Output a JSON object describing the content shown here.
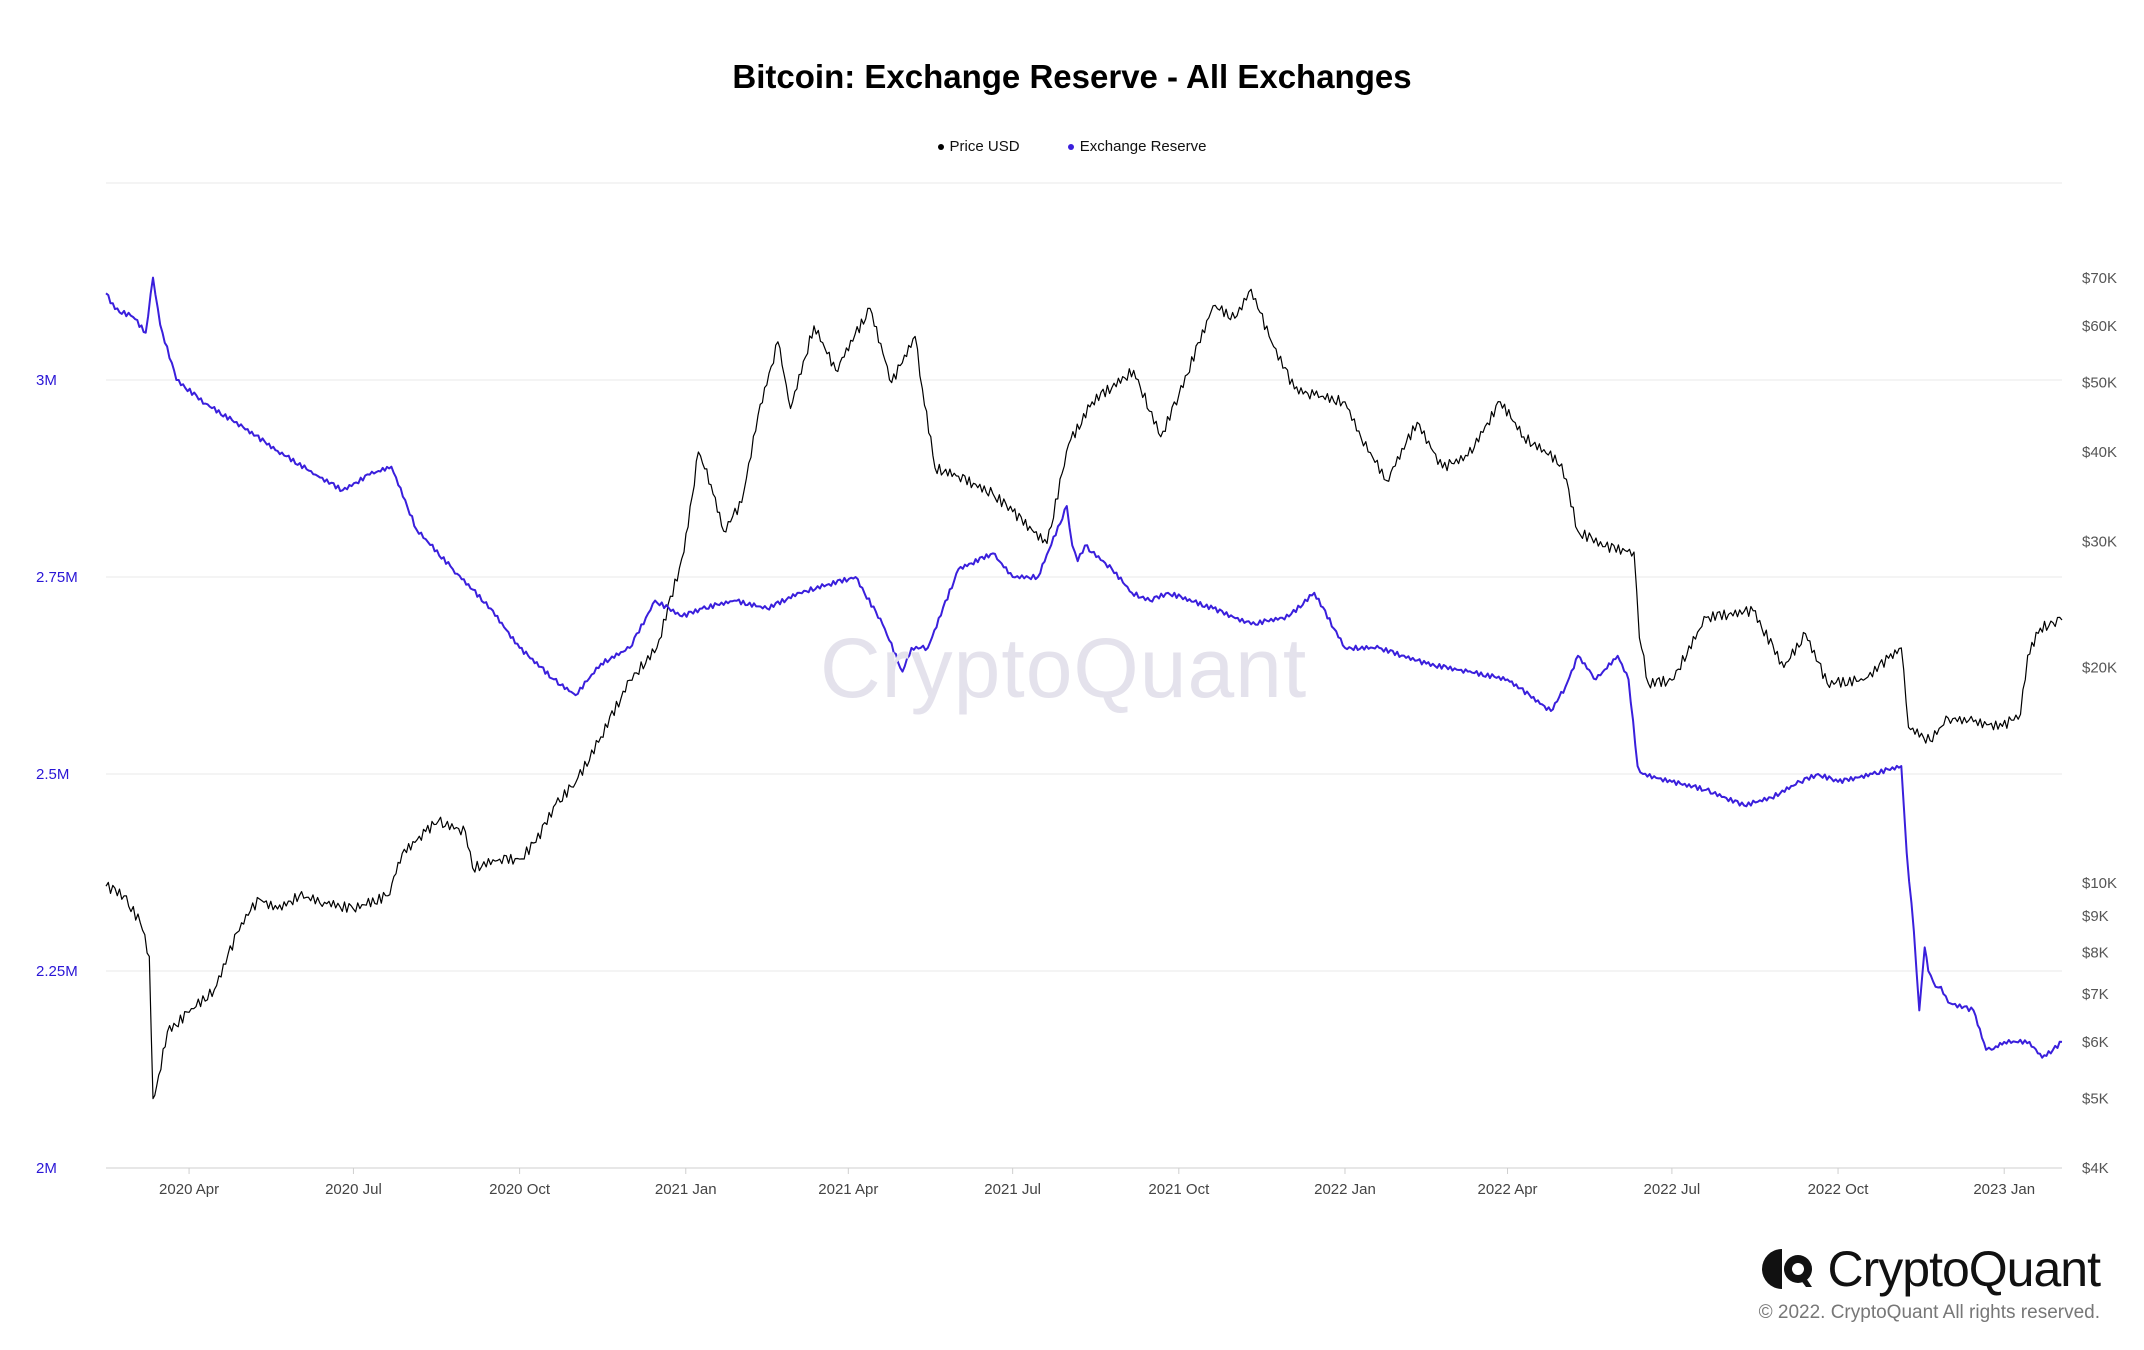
{
  "chart_data": {
    "type": "line",
    "title": "Bitcoin: Exchange Reserve - All Exchanges",
    "x_tick_labels": [
      "2020 Apr",
      "2020 Jul",
      "2020 Oct",
      "2021 Jan",
      "2021 Apr",
      "2021 Jul",
      "2021 Oct",
      "2022 Jan",
      "2022 Apr",
      "2022 Jul",
      "2022 Oct",
      "2023 Jan"
    ],
    "x_tick_dates": [
      "2020-04-01",
      "2020-07-01",
      "2020-10-01",
      "2021-01-01",
      "2021-04-01",
      "2021-07-01",
      "2021-10-01",
      "2022-01-01",
      "2022-04-01",
      "2022-07-01",
      "2022-10-01",
      "2023-01-01"
    ],
    "xlim": [
      "2020-02-15",
      "2023-02-02"
    ],
    "left_axis": {
      "scale": "linear",
      "ylim": [
        2000000,
        3250000
      ],
      "ticks": [
        2000000,
        2250000,
        2500000,
        2750000,
        3000000
      ],
      "tick_labels": [
        "2M",
        "2.25M",
        "2.5M",
        "2.75M",
        "3M"
      ]
    },
    "right_axis": {
      "scale": "log",
      "ylim": [
        4000,
        95000
      ],
      "ticks": [
        4000,
        5000,
        6000,
        7000,
        8000,
        9000,
        10000,
        20000,
        30000,
        40000,
        50000,
        60000,
        70000
      ],
      "tick_labels": [
        "$4K",
        "$5K",
        "$6K",
        "$7K",
        "$8K",
        "$9K",
        "$10K",
        "$20K",
        "$30K",
        "$40K",
        "$50K",
        "$60K",
        "$70K"
      ]
    },
    "grid": true,
    "legend_position": "top-center",
    "series": [
      {
        "name": "Price USD",
        "axis": "right",
        "color": "#000000",
        "x": [
          "2020-02-15",
          "2020-02-25",
          "2020-03-05",
          "2020-03-10",
          "2020-03-12",
          "2020-03-14",
          "2020-03-20",
          "2020-04-01",
          "2020-04-15",
          "2020-04-30",
          "2020-05-10",
          "2020-05-20",
          "2020-06-01",
          "2020-06-15",
          "2020-07-01",
          "2020-07-20",
          "2020-07-28",
          "2020-08-10",
          "2020-08-17",
          "2020-09-01",
          "2020-09-05",
          "2020-09-20",
          "2020-10-01",
          "2020-10-10",
          "2020-10-21",
          "2020-11-01",
          "2020-11-15",
          "2020-12-01",
          "2020-12-16",
          "2020-12-31",
          "2021-01-08",
          "2021-01-15",
          "2021-01-22",
          "2021-02-01",
          "2021-02-10",
          "2021-02-21",
          "2021-02-28",
          "2021-03-13",
          "2021-03-25",
          "2021-04-13",
          "2021-04-25",
          "2021-05-08",
          "2021-05-12",
          "2021-05-19",
          "2021-06-01",
          "2021-06-20",
          "2021-07-01",
          "2021-07-20",
          "2021-08-01",
          "2021-08-14",
          "2021-09-06",
          "2021-09-21",
          "2021-10-01",
          "2021-10-20",
          "2021-11-01",
          "2021-11-10",
          "2021-11-20",
          "2021-12-04",
          "2021-12-15",
          "2022-01-01",
          "2022-01-10",
          "2022-01-24",
          "2022-02-10",
          "2022-02-24",
          "2022-03-10",
          "2022-03-28",
          "2022-04-10",
          "2022-05-01",
          "2022-05-10",
          "2022-05-25",
          "2022-06-10",
          "2022-06-13",
          "2022-06-18",
          "2022-07-01",
          "2022-07-20",
          "2022-08-15",
          "2022-09-01",
          "2022-09-13",
          "2022-09-25",
          "2022-10-15",
          "2022-10-29",
          "2022-11-05",
          "2022-11-09",
          "2022-11-21",
          "2022-12-01",
          "2022-12-15",
          "2022-12-31",
          "2023-01-10",
          "2023-01-14",
          "2023-01-21",
          "2023-01-28",
          "2023-02-02"
        ],
        "y": [
          9900,
          9600,
          8800,
          7900,
          5000,
          5200,
          6200,
          6600,
          7100,
          8800,
          9500,
          9200,
          9600,
          9400,
          9200,
          9600,
          11000,
          11800,
          12200,
          11800,
          10500,
          10800,
          10800,
          11400,
          12900,
          13800,
          16000,
          19200,
          21300,
          29000,
          40000,
          36000,
          31000,
          34000,
          45000,
          57000,
          46000,
          60000,
          52000,
          63500,
          50000,
          58000,
          49000,
          38000,
          37000,
          35000,
          33000,
          29800,
          41000,
          47000,
          52000,
          42000,
          48000,
          64000,
          61500,
          67500,
          58000,
          49000,
          48000,
          47000,
          41800,
          36500,
          44000,
          38000,
          39500,
          47000,
          42000,
          38500,
          31000,
          29500,
          29000,
          22000,
          19000,
          19200,
          23500,
          24000,
          20000,
          22300,
          19000,
          19200,
          20600,
          21300,
          16500,
          15800,
          17000,
          16800,
          16550,
          17200,
          20800,
          22700,
          23100,
          23300
        ]
      },
      {
        "name": "Exchange Reserve",
        "axis": "left",
        "color": "#3a1fdc",
        "x": [
          "2020-02-15",
          "2020-02-20",
          "2020-03-01",
          "2020-03-08",
          "2020-03-12",
          "2020-03-16",
          "2020-03-25",
          "2020-04-10",
          "2020-05-01",
          "2020-05-20",
          "2020-06-10",
          "2020-06-25",
          "2020-07-10",
          "2020-07-22",
          "2020-08-05",
          "2020-08-25",
          "2020-09-15",
          "2020-10-01",
          "2020-10-20",
          "2020-11-01",
          "2020-11-15",
          "2020-12-01",
          "2020-12-15",
          "2020-12-30",
          "2021-01-10",
          "2021-01-28",
          "2021-02-15",
          "2021-03-05",
          "2021-03-20",
          "2021-04-05",
          "2021-04-20",
          "2021-05-01",
          "2021-05-06",
          "2021-05-15",
          "2021-06-01",
          "2021-06-20",
          "2021-07-01",
          "2021-07-15",
          "2021-07-31",
          "2021-08-03",
          "2021-08-06",
          "2021-08-10",
          "2021-08-25",
          "2021-09-05",
          "2021-09-15",
          "2021-09-25",
          "2021-10-20",
          "2021-11-10",
          "2021-12-01",
          "2021-12-15",
          "2022-01-01",
          "2022-01-20",
          "2022-02-15",
          "2022-03-10",
          "2022-04-01",
          "2022-04-25",
          "2022-05-03",
          "2022-05-10",
          "2022-05-20",
          "2022-06-01",
          "2022-06-07",
          "2022-06-12",
          "2022-06-15",
          "2022-07-01",
          "2022-07-20",
          "2022-08-10",
          "2022-08-25",
          "2022-09-10",
          "2022-09-20",
          "2022-10-01",
          "2022-10-20",
          "2022-11-05",
          "2022-11-08",
          "2022-11-12",
          "2022-11-15",
          "2022-11-18",
          "2022-11-20",
          "2022-11-24",
          "2022-11-27",
          "2022-12-01",
          "2022-12-15",
          "2022-12-22",
          "2022-12-25",
          "2023-01-01",
          "2023-01-15",
          "2023-01-22",
          "2023-01-28",
          "2023-02-02"
        ],
        "y": [
          3110000,
          3090000,
          3080000,
          3060000,
          3130000,
          3070000,
          3000000,
          2970000,
          2940000,
          2910000,
          2880000,
          2860000,
          2880000,
          2890000,
          2810000,
          2760000,
          2710000,
          2660000,
          2620000,
          2600000,
          2640000,
          2660000,
          2720000,
          2700000,
          2710000,
          2720000,
          2710000,
          2730000,
          2740000,
          2750000,
          2690000,
          2630000,
          2660000,
          2660000,
          2760000,
          2780000,
          2750000,
          2750000,
          2840000,
          2790000,
          2770000,
          2790000,
          2760000,
          2730000,
          2720000,
          2730000,
          2710000,
          2690000,
          2700000,
          2730000,
          2660000,
          2660000,
          2640000,
          2630000,
          2620000,
          2580000,
          2610000,
          2650000,
          2620000,
          2650000,
          2620000,
          2510000,
          2500000,
          2490000,
          2480000,
          2460000,
          2470000,
          2490000,
          2500000,
          2490000,
          2500000,
          2510000,
          2400000,
          2300000,
          2200000,
          2280000,
          2250000,
          2230000,
          2230000,
          2210000,
          2200000,
          2150000,
          2150000,
          2160000,
          2160000,
          2140000,
          2150000,
          2160000
        ]
      }
    ]
  },
  "watermark": "CryptoQuant",
  "brand": {
    "name": "CryptoQuant",
    "copyright": "© 2022. CryptoQuant All rights reserved."
  }
}
